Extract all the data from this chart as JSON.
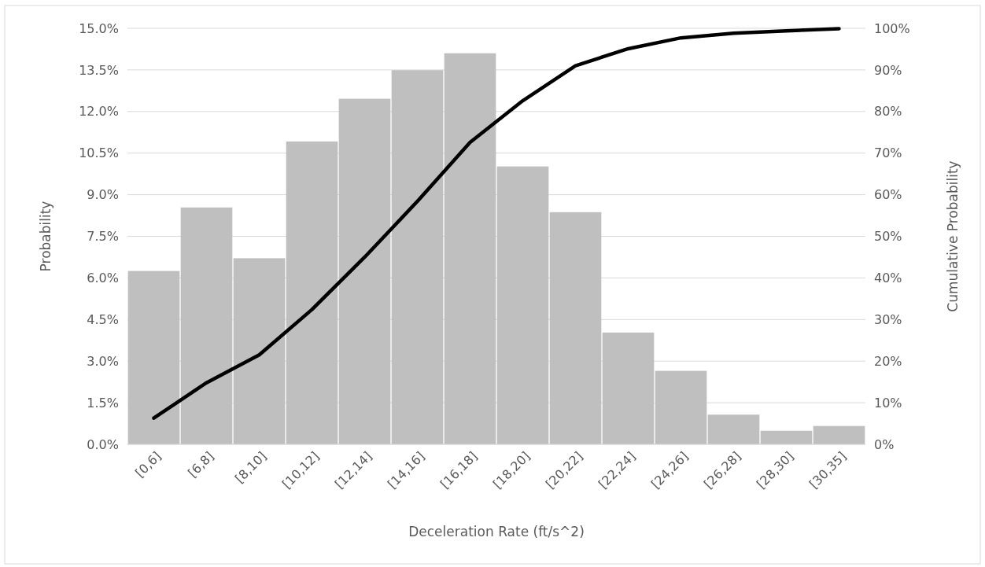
{
  "chart_data": {
    "type": "bar",
    "xlabel": "Deceleration Rate (ft/s^2)",
    "ylabel": "Probability",
    "y2label": "Cumulative Probability",
    "categories": [
      "[0,6]",
      "[6,8]",
      "[8,10]",
      "[10,12]",
      "[12,14]",
      "[14,16]",
      "[16,18]",
      "[18,20]",
      "[20,22]",
      "[22,24]",
      "[24,26]",
      "[26,28]",
      "[28,30]",
      "[30,35]"
    ],
    "series": [
      {
        "color": "#bfbfbf",
        "values": [
          6.25,
          8.54,
          6.71,
          10.92,
          12.46,
          13.49,
          14.1,
          10.02,
          8.37,
          4.03,
          2.65,
          1.07,
          0.49,
          0.66
        ]
      },
      {
        "type": "line",
        "axis": "y2",
        "color": "#000000",
        "values": [
          6.3,
          14.8,
          21.5,
          32.4,
          45.0,
          58.4,
          72.6,
          82.6,
          91.0,
          95.1,
          97.7,
          98.8,
          99.4,
          99.9
        ]
      }
    ],
    "ylim": [
      0,
      15
    ],
    "yticks": [
      {
        "value": 0,
        "label": "0.0%"
      },
      {
        "value": 1.5,
        "label": "1.5%"
      },
      {
        "value": 3,
        "label": "3.0%"
      },
      {
        "value": 4.5,
        "label": "4.5%"
      },
      {
        "value": 6,
        "label": "6.0%"
      },
      {
        "value": 7.5,
        "label": "7.5%"
      },
      {
        "value": 9,
        "label": "9.0%"
      },
      {
        "value": 10.5,
        "label": "10.5%"
      },
      {
        "value": 12,
        "label": "12.0%"
      },
      {
        "value": 13.5,
        "label": "13.5%"
      },
      {
        "value": 15,
        "label": "15.0%"
      }
    ],
    "y2lim": [
      0,
      100
    ],
    "y2ticks": [
      {
        "value": 0,
        "label": "0%"
      },
      {
        "value": 10,
        "label": "10%"
      },
      {
        "value": 20,
        "label": "20%"
      },
      {
        "value": 30,
        "label": "30%"
      },
      {
        "value": 40,
        "label": "40%"
      },
      {
        "value": 50,
        "label": "50%"
      },
      {
        "value": 60,
        "label": "60%"
      },
      {
        "value": 70,
        "label": "70%"
      },
      {
        "value": 80,
        "label": "80%"
      },
      {
        "value": 90,
        "label": "90%"
      },
      {
        "value": 100,
        "label": "100%"
      }
    ],
    "grid": "y",
    "marker": "none",
    "line_style": "solid"
  }
}
